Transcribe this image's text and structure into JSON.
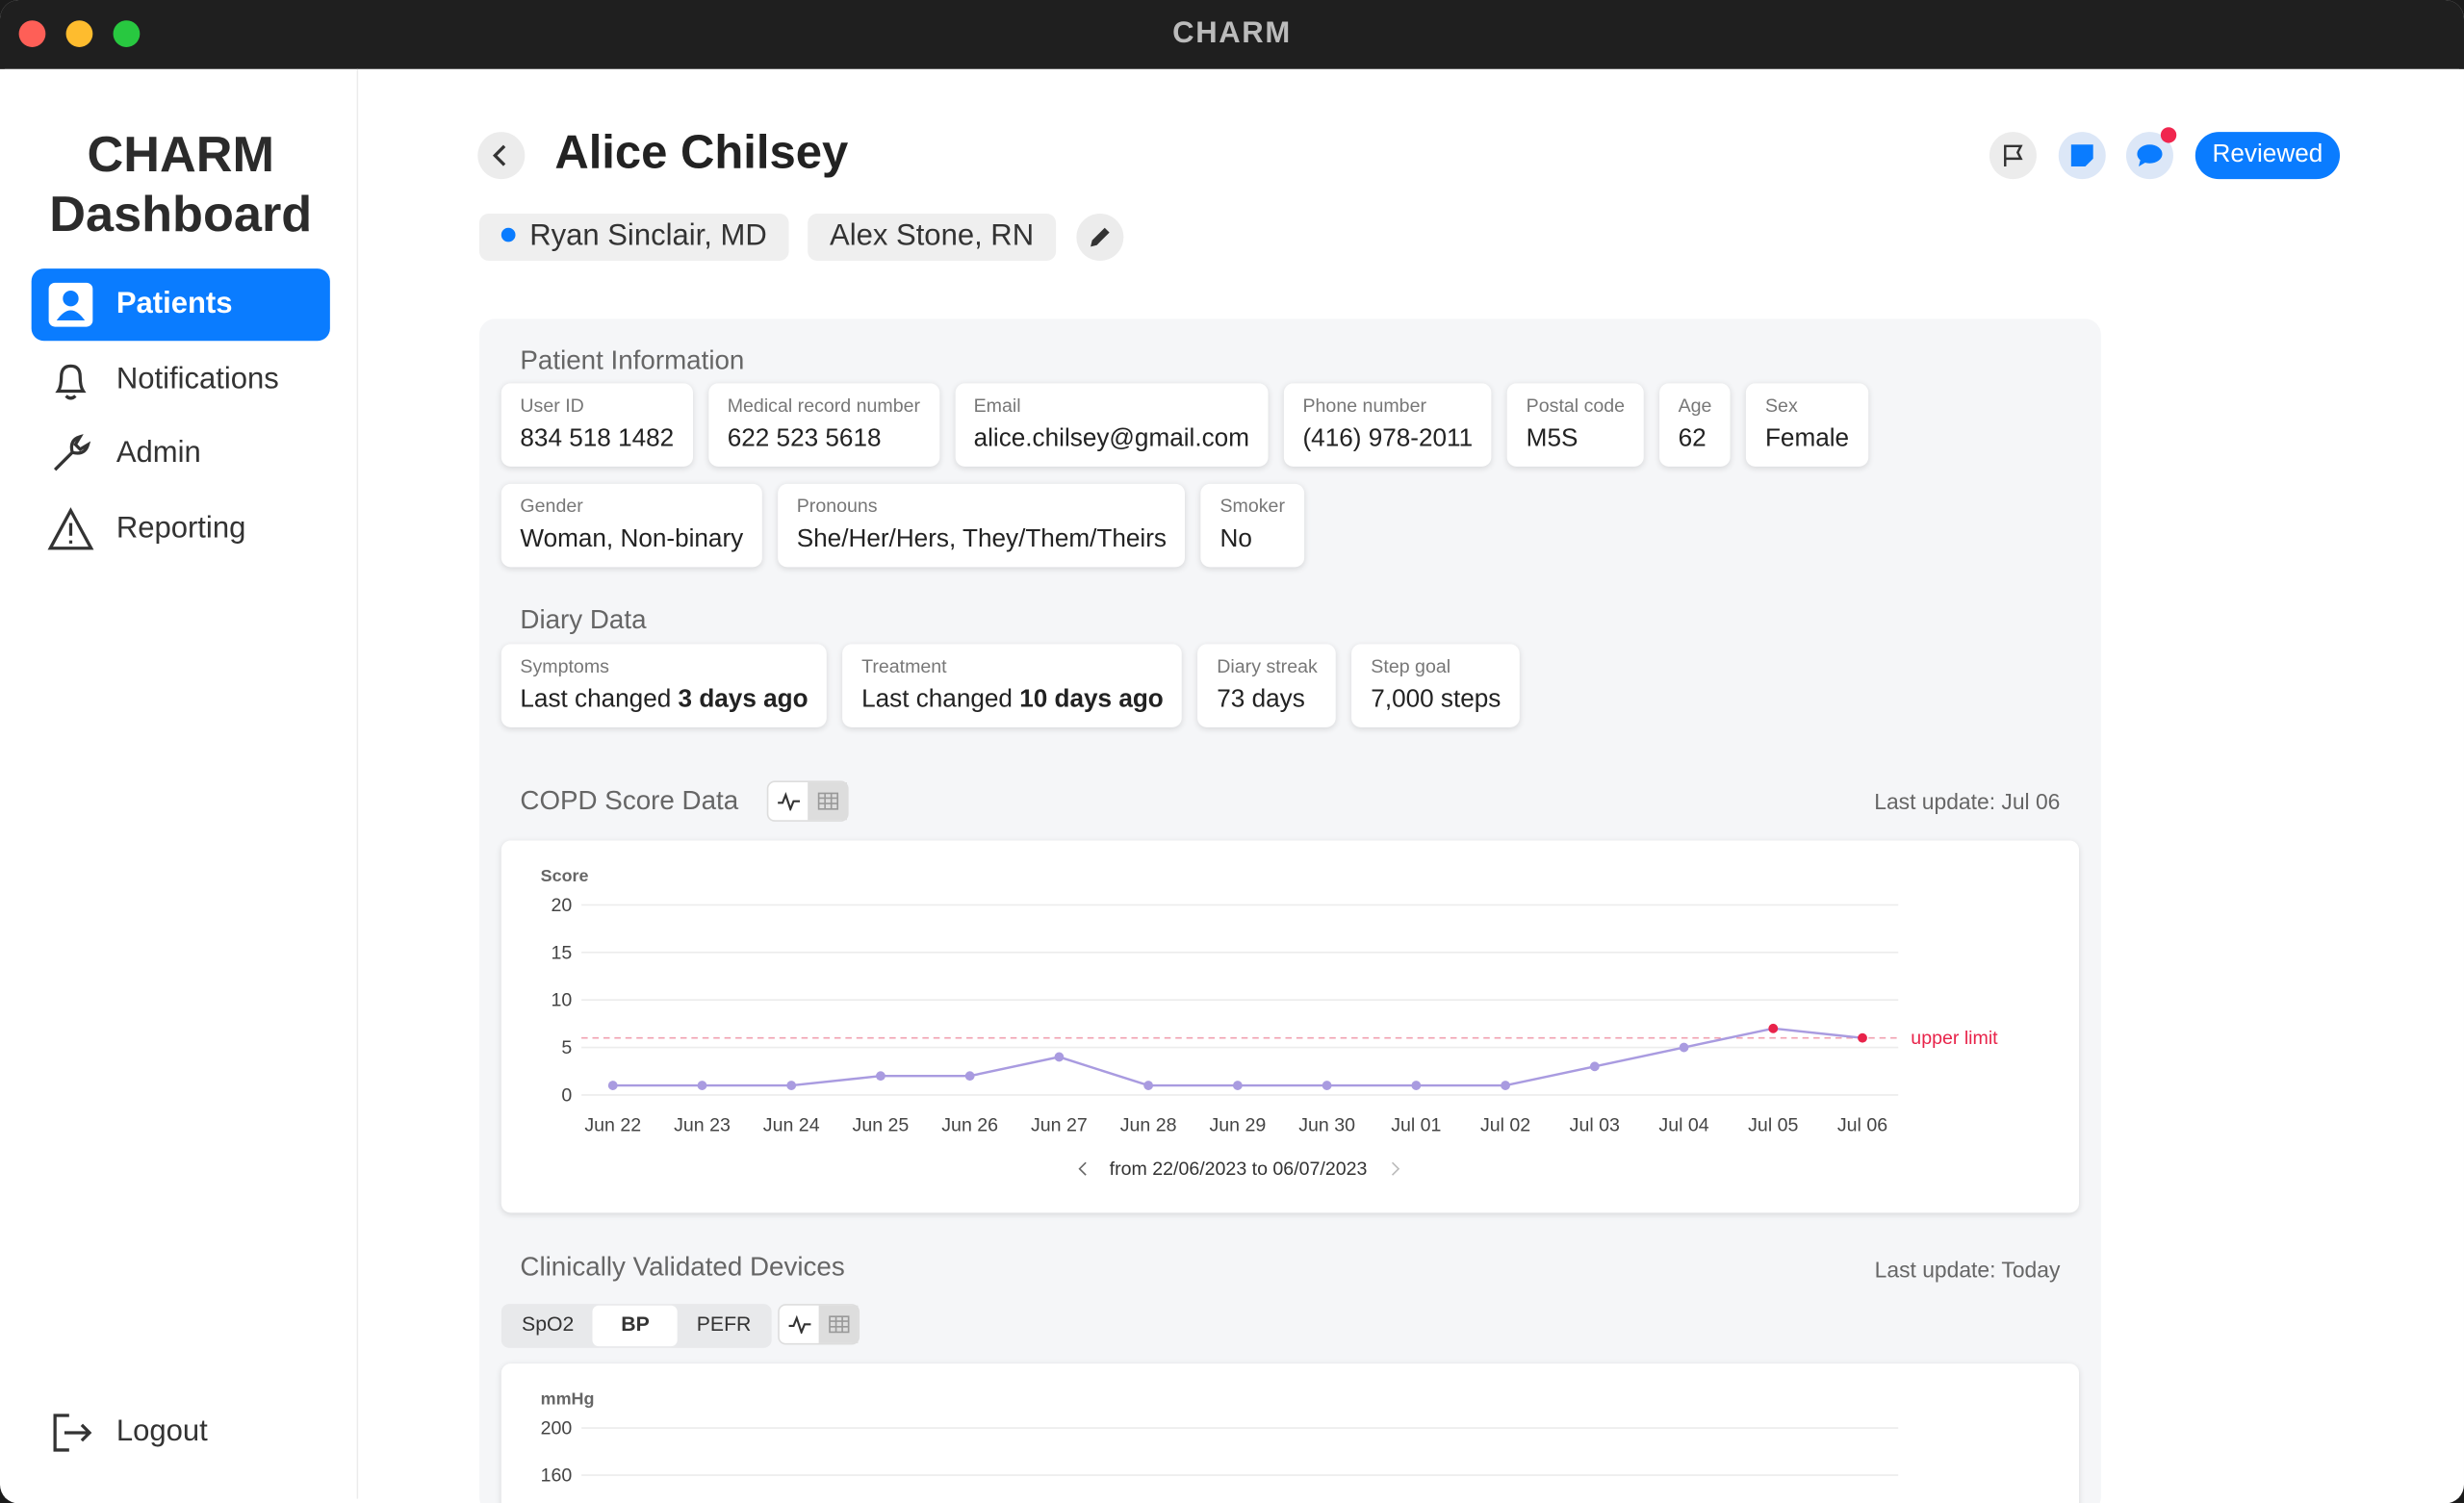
{
  "window": {
    "title": "CHARM"
  },
  "sidebar": {
    "title_line1": "CHARM",
    "title_line2": "Dashboard",
    "nav": [
      "Patients",
      "Notifications",
      "Admin",
      "Reporting"
    ],
    "logout": "Logout"
  },
  "header": {
    "name": "Alice Chilsey",
    "care_team": [
      "Ryan Sinclair, MD",
      "Alex Stone, RN"
    ],
    "status_button": "Reviewed"
  },
  "patient_info": {
    "title": "Patient Information",
    "rows": [
      [
        {
          "label": "User ID",
          "value": "834 518 1482"
        },
        {
          "label": "Medical record number",
          "value": "622 523 5618"
        },
        {
          "label": "Email",
          "value": "alice.chilsey@gmail.com"
        },
        {
          "label": "Phone number",
          "value": "(416) 978-2011"
        },
        {
          "label": "Postal code",
          "value": "M5S"
        },
        {
          "label": "Age",
          "value": "62"
        },
        {
          "label": "Sex",
          "value": "Female"
        }
      ],
      [
        {
          "label": "Gender",
          "value": "Woman, Non-binary"
        },
        {
          "label": "Pronouns",
          "value": "She/Her/Hers, They/Them/Theirs"
        },
        {
          "label": "Smoker",
          "value": "No"
        }
      ]
    ]
  },
  "diary": {
    "title": "Diary Data",
    "cards": [
      {
        "label": "Symptoms",
        "value": "Last changed",
        "value_bold": "3 days ago"
      },
      {
        "label": "Treatment",
        "value": "Last changed",
        "value_bold": "10 days ago"
      },
      {
        "label": "Diary streak",
        "value": "73 days"
      },
      {
        "label": "Step goal",
        "value": "7,000 steps"
      }
    ]
  },
  "copd": {
    "title": "COPD Score Data",
    "last_update": "Last update: Jul 06",
    "chart": {
      "type": "line",
      "y_label": "Score",
      "categories": [
        "Jun 22",
        "Jun 23",
        "Jun 24",
        "Jun 25",
        "Jun 26",
        "Jun 27",
        "Jun 28",
        "Jun 29",
        "Jun 30",
        "Jul 01",
        "Jul 02",
        "Jul 03",
        "Jul 04",
        "Jul 05",
        "Jul 06"
      ],
      "values": [
        1,
        1,
        1,
        2,
        2,
        4,
        1,
        1,
        1,
        1,
        1,
        3,
        5,
        7,
        6
      ],
      "color": "#a99be0",
      "alert_color": "#e8234a",
      "ylim": [
        0,
        20
      ],
      "yticks": [
        0,
        5,
        10,
        15,
        20
      ],
      "grid": true,
      "upper_limit": {
        "value": 6,
        "label": "upper limit"
      },
      "range": "from 22/06/2023 to 06/07/2023"
    }
  },
  "devices": {
    "title": "Clinically Validated Devices",
    "last_update": "Last update: Today",
    "tabs": [
      "SpO2",
      "BP",
      "PEFR"
    ],
    "selected": 1,
    "chart": {
      "y_label": "mmHg",
      "yticks": [
        200,
        160
      ]
    }
  }
}
